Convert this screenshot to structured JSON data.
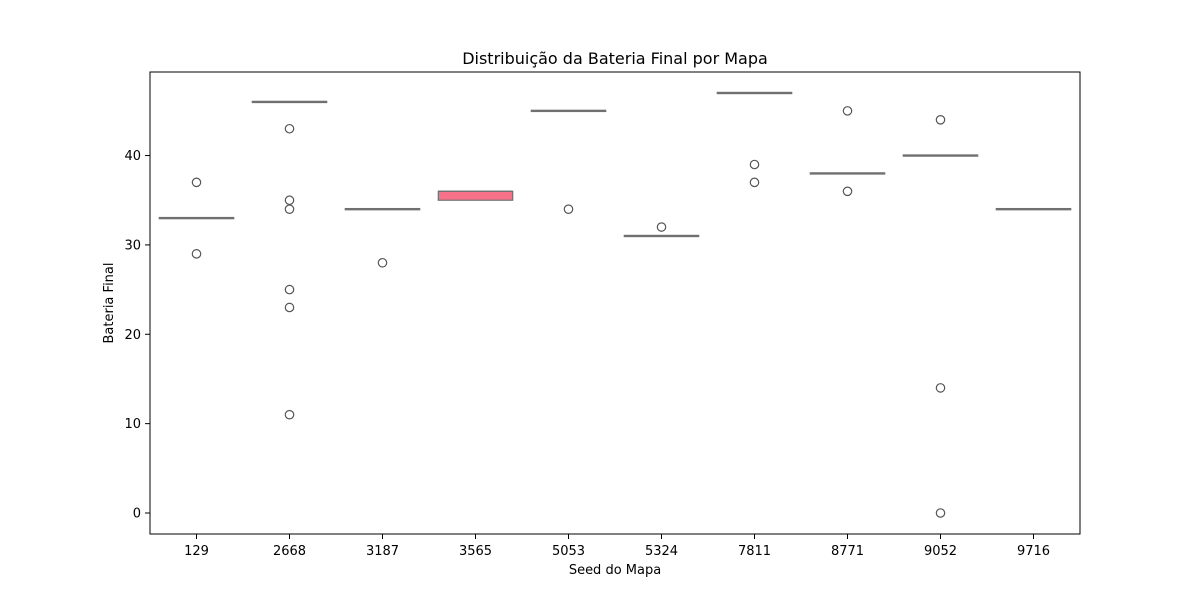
{
  "chart_data": {
    "type": "box",
    "title": "Distribuição da Bateria Final por Mapa",
    "xlabel": "Seed do Mapa",
    "ylabel": "Bateria Final",
    "ylim": [
      -2.35,
      49.35
    ],
    "yticks": [
      0,
      10,
      20,
      30,
      40
    ],
    "grid": false,
    "categories": [
      "129",
      "2668",
      "3187",
      "3565",
      "5053",
      "5324",
      "7811",
      "8771",
      "9052",
      "9716"
    ],
    "boxes": [
      {
        "q1": 33,
        "median": 33,
        "q3": 33,
        "whisker_low": 33,
        "whisker_high": 33,
        "outliers": [
          37,
          29
        ],
        "color": "#dc8a8a"
      },
      {
        "q1": 46,
        "median": 46,
        "q3": 46,
        "whisker_low": 46,
        "whisker_high": 46,
        "outliers": [
          43,
          35,
          34,
          25,
          23,
          11
        ],
        "color": "#d9903d"
      },
      {
        "q1": 34,
        "median": 34,
        "q3": 34,
        "whisker_low": 34,
        "whisker_high": 34,
        "outliers": [
          28
        ],
        "color": "#b7a13a"
      },
      {
        "q1": 35,
        "median": 36,
        "q3": 36,
        "whisker_low": 35,
        "whisker_high": 36,
        "outliers": [],
        "color": "#f77189"
      },
      {
        "q1": 45,
        "median": 45,
        "q3": 45,
        "whisker_low": 45,
        "whisker_high": 45,
        "outliers": [
          34
        ],
        "color": "#50b131"
      },
      {
        "q1": 31,
        "median": 31,
        "q3": 31,
        "whisker_low": 31,
        "whisker_high": 31,
        "outliers": [
          32
        ],
        "color": "#36ada4"
      },
      {
        "q1": 47,
        "median": 47,
        "q3": 47,
        "whisker_low": 47,
        "whisker_high": 47,
        "outliers": [
          39,
          37
        ],
        "color": "#3ba3ec"
      },
      {
        "q1": 38,
        "median": 38,
        "q3": 38,
        "whisker_low": 38,
        "whisker_high": 38,
        "outliers": [
          45,
          36
        ],
        "color": "#bb83f4"
      },
      {
        "q1": 40,
        "median": 40,
        "q3": 40,
        "whisker_low": 40,
        "whisker_high": 40,
        "outliers": [
          44,
          14,
          0
        ],
        "color": "#f564d4"
      },
      {
        "q1": 34,
        "median": 34,
        "q3": 34,
        "whisker_low": 34,
        "whisker_high": 34,
        "outliers": [],
        "color": "#7e8c9e"
      }
    ],
    "line_color": "#707070",
    "frame_color": "#000000"
  }
}
